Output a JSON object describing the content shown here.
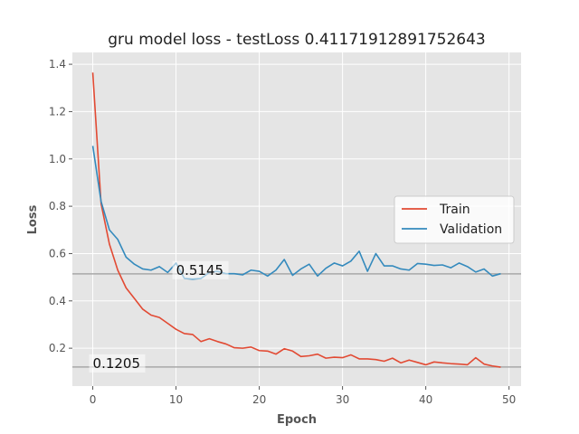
{
  "chart_data": {
    "type": "line",
    "title": "gru model loss - testLoss 0.41171912891752643",
    "xlabel": "Epoch",
    "ylabel": "Loss",
    "xlim": [
      -2.45,
      51.45
    ],
    "ylim": [
      0.04,
      1.45
    ],
    "xticks": [
      0,
      10,
      20,
      30,
      40,
      50
    ],
    "yticks": [
      0.2,
      0.4,
      0.6,
      0.8,
      1.0,
      1.2,
      1.4
    ],
    "xtick_labels": [
      "0",
      "10",
      "20",
      "30",
      "40",
      "50"
    ],
    "ytick_labels": [
      "0.2",
      "0.4",
      "0.6",
      "0.8",
      "1.0",
      "1.2",
      "1.4"
    ],
    "grid": true,
    "legend": {
      "position": "center-right"
    },
    "series": [
      {
        "name": "Train",
        "color": "#E24A33",
        "x": [
          0,
          1,
          2,
          3,
          4,
          5,
          6,
          7,
          8,
          9,
          10,
          11,
          12,
          13,
          14,
          15,
          16,
          17,
          18,
          19,
          20,
          21,
          22,
          23,
          24,
          25,
          26,
          27,
          28,
          29,
          30,
          31,
          32,
          33,
          34,
          35,
          36,
          37,
          38,
          39,
          40,
          41,
          42,
          43,
          44,
          45,
          46,
          47,
          48,
          49
        ],
        "values": [
          1.365,
          0.81,
          0.64,
          0.53,
          0.455,
          0.41,
          0.365,
          0.34,
          0.33,
          0.305,
          0.28,
          0.262,
          0.258,
          0.228,
          0.24,
          0.228,
          0.218,
          0.202,
          0.2,
          0.205,
          0.19,
          0.188,
          0.175,
          0.198,
          0.188,
          0.165,
          0.168,
          0.175,
          0.158,
          0.162,
          0.16,
          0.172,
          0.155,
          0.155,
          0.152,
          0.145,
          0.158,
          0.138,
          0.15,
          0.14,
          0.13,
          0.142,
          0.138,
          0.135,
          0.133,
          0.13,
          0.16,
          0.133,
          0.125,
          0.12
        ]
      },
      {
        "name": "Validation",
        "color": "#348ABD",
        "x": [
          0,
          1,
          2,
          3,
          4,
          5,
          6,
          7,
          8,
          9,
          10,
          11,
          12,
          13,
          14,
          15,
          16,
          17,
          18,
          19,
          20,
          21,
          22,
          23,
          24,
          25,
          26,
          27,
          28,
          29,
          30,
          31,
          32,
          33,
          34,
          35,
          36,
          37,
          38,
          39,
          40,
          41,
          42,
          43,
          44,
          45,
          46,
          47,
          48,
          49
        ],
        "values": [
          1.055,
          0.82,
          0.7,
          0.66,
          0.585,
          0.555,
          0.535,
          0.53,
          0.545,
          0.52,
          0.56,
          0.495,
          0.492,
          0.495,
          0.52,
          0.525,
          0.515,
          0.515,
          0.51,
          0.53,
          0.525,
          0.505,
          0.53,
          0.575,
          0.508,
          0.535,
          0.555,
          0.505,
          0.538,
          0.56,
          0.548,
          0.568,
          0.61,
          0.525,
          0.6,
          0.548,
          0.548,
          0.535,
          0.53,
          0.558,
          0.555,
          0.55,
          0.552,
          0.54,
          0.56,
          0.545,
          0.522,
          0.535,
          0.505,
          0.515
        ]
      }
    ],
    "reference_lines": [
      {
        "y": 0.5145,
        "label": "0.5145",
        "label_x": 10
      },
      {
        "y": 0.1205,
        "label": "0.1205",
        "label_x": 0
      }
    ]
  }
}
